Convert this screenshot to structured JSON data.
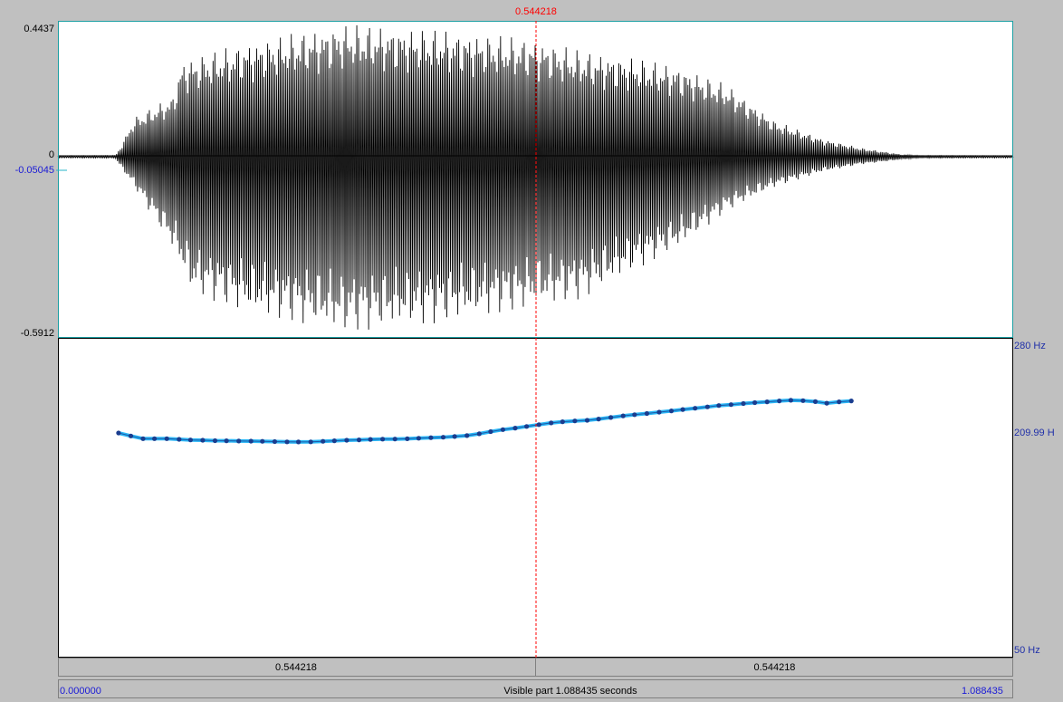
{
  "cursor": {
    "time_label": "0.544218",
    "time_sec": 0.544218
  },
  "waveform": {
    "max_label": "0.4437",
    "zero_label": "0",
    "cursor_value_label": "-0.05045",
    "min_label": "-0.5912",
    "y_max": 0.4437,
    "y_min": -0.5912,
    "cursor_value": -0.05045
  },
  "pitch": {
    "top_label": "280 Hz",
    "mid_label": "209.99 H",
    "bottom_label": "50 Hz",
    "hz_max": 280,
    "hz_min": 50,
    "points": [
      [
        0.069,
        214.3
      ],
      [
        0.083,
        212.0
      ],
      [
        0.097,
        210.0
      ],
      [
        0.11,
        210.0
      ],
      [
        0.124,
        210.0
      ],
      [
        0.138,
        209.5
      ],
      [
        0.151,
        209.0
      ],
      [
        0.165,
        208.8
      ],
      [
        0.179,
        208.5
      ],
      [
        0.192,
        208.4
      ],
      [
        0.206,
        208.2
      ],
      [
        0.22,
        208.1
      ],
      [
        0.233,
        208.0
      ],
      [
        0.247,
        207.8
      ],
      [
        0.261,
        207.6
      ],
      [
        0.274,
        207.5
      ],
      [
        0.288,
        207.6
      ],
      [
        0.302,
        208.0
      ],
      [
        0.315,
        208.4
      ],
      [
        0.329,
        208.8
      ],
      [
        0.343,
        209.1
      ],
      [
        0.356,
        209.4
      ],
      [
        0.37,
        209.6
      ],
      [
        0.384,
        209.7
      ],
      [
        0.398,
        209.9
      ],
      [
        0.411,
        210.3
      ],
      [
        0.425,
        210.7
      ],
      [
        0.439,
        211.1
      ],
      [
        0.452,
        211.6
      ],
      [
        0.466,
        212.3
      ],
      [
        0.48,
        213.7
      ],
      [
        0.493,
        215.3
      ],
      [
        0.507,
        216.8
      ],
      [
        0.521,
        218.0
      ],
      [
        0.534,
        219.2
      ],
      [
        0.548,
        220.6
      ],
      [
        0.562,
        221.9
      ],
      [
        0.575,
        222.8
      ],
      [
        0.589,
        223.4
      ],
      [
        0.603,
        223.9
      ],
      [
        0.616,
        224.8
      ],
      [
        0.63,
        226.0
      ],
      [
        0.644,
        227.2
      ],
      [
        0.657,
        228.1
      ],
      [
        0.671,
        229.0
      ],
      [
        0.685,
        230.0
      ],
      [
        0.699,
        231.0
      ],
      [
        0.712,
        232.0
      ],
      [
        0.726,
        233.0
      ],
      [
        0.74,
        234.0
      ],
      [
        0.753,
        235.0
      ],
      [
        0.767,
        235.7
      ],
      [
        0.781,
        236.5
      ],
      [
        0.794,
        237.2
      ],
      [
        0.808,
        237.8
      ],
      [
        0.822,
        238.5
      ],
      [
        0.835,
        239.0
      ],
      [
        0.849,
        238.7
      ],
      [
        0.863,
        238.0
      ],
      [
        0.876,
        236.8
      ],
      [
        0.89,
        237.8
      ],
      [
        0.904,
        238.5
      ]
    ]
  },
  "time_axis": {
    "left_bar_label": "0.544218",
    "right_bar_label": "0.544218",
    "total_start_label": "0.000000",
    "total_end_label": "1.088435",
    "visible_part_label": "Visible part 1.088435 seconds",
    "duration_sec": 1.088435
  }
}
